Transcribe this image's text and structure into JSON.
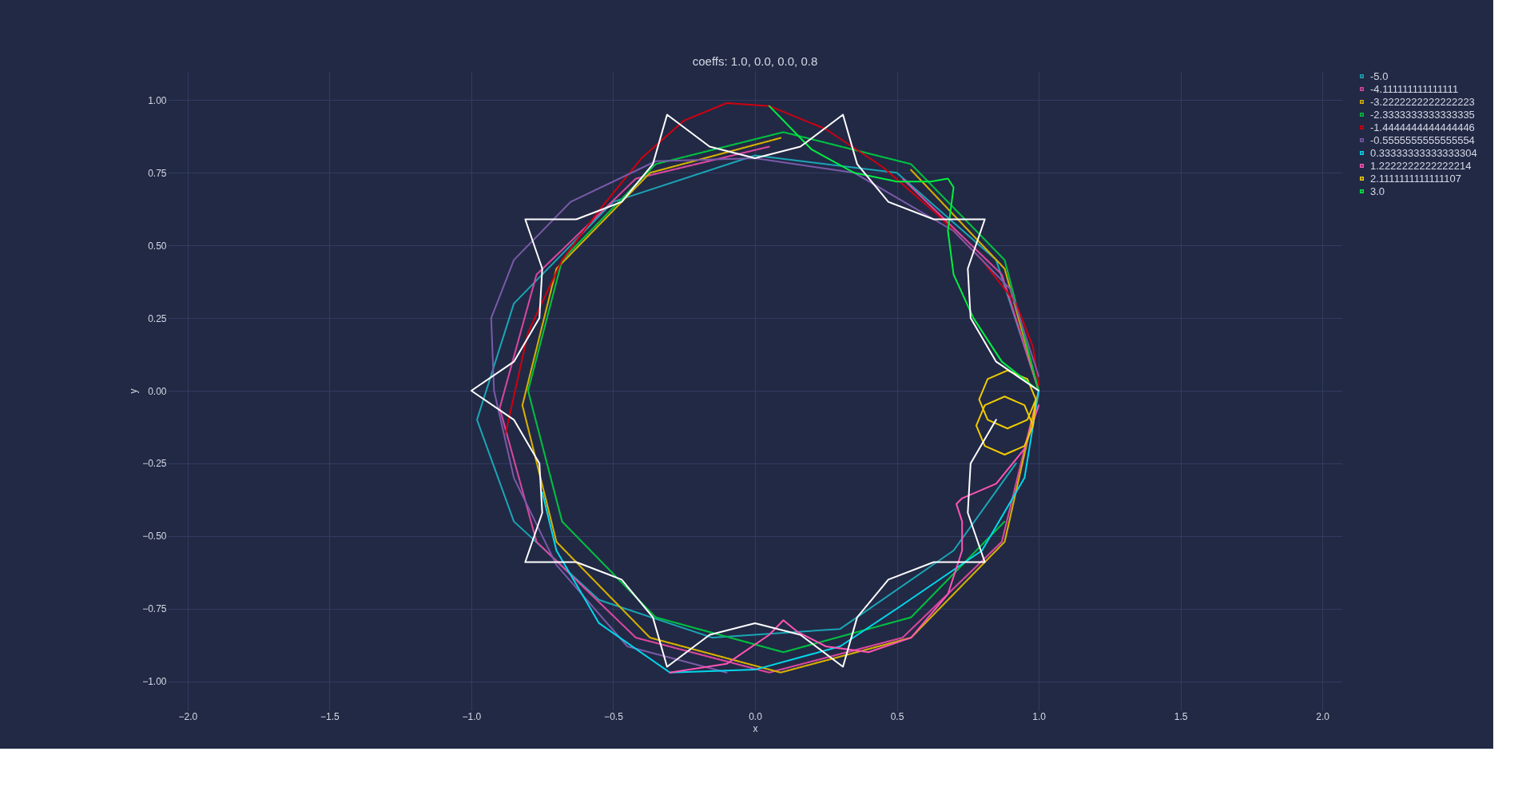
{
  "chart_data": {
    "type": "line",
    "title": "coeffs: 1.0, 0.0, 0.0, 0.8",
    "xlabel": "x",
    "ylabel": "y",
    "xlim": [
      -2.07,
      2.07
    ],
    "ylim": [
      -1.1,
      1.1
    ],
    "xticks": [
      {
        "value": -2,
        "label": "−2.0"
      },
      {
        "value": -1.5,
        "label": "−1.5"
      },
      {
        "value": -1,
        "label": "−1.0"
      },
      {
        "value": -0.5,
        "label": "−0.5"
      },
      {
        "value": 0,
        "label": "0.0"
      },
      {
        "value": 0.5,
        "label": "0.5"
      },
      {
        "value": 1,
        "label": "1.0"
      },
      {
        "value": 1.5,
        "label": "1.5"
      },
      {
        "value": 2,
        "label": "2.0"
      }
    ],
    "yticks": [
      {
        "value": -1,
        "label": "−1.00"
      },
      {
        "value": -0.75,
        "label": "−0.75"
      },
      {
        "value": -0.5,
        "label": "−0.50"
      },
      {
        "value": -0.25,
        "label": "−0.25"
      },
      {
        "value": 0,
        "label": "0.00"
      },
      {
        "value": 0.25,
        "label": "0.25"
      },
      {
        "value": 0.5,
        "label": "0.50"
      },
      {
        "value": 0.75,
        "label": "0.75"
      },
      {
        "value": 1,
        "label": "1.00"
      }
    ],
    "grid": true,
    "legend": "top right",
    "series": [
      {
        "name": "-5.0",
        "color": "#1aa6b5",
        "x": [
          1.0,
          0.85,
          0.5,
          0,
          -0.5,
          -0.85,
          -0.98,
          -0.85,
          -0.55,
          -0.15,
          0.3,
          0.7,
          0.92
        ],
        "values": [
          0,
          0.45,
          0.75,
          0.81,
          0.65,
          0.3,
          -0.1,
          -0.45,
          -0.72,
          -0.85,
          -0.82,
          -0.55,
          -0.25
        ]
      },
      {
        "name": "-4.111111111111111",
        "color": "#d8479e",
        "line_style": "dotted",
        "x": [
          0.05,
          -0.42,
          -0.77,
          -0.9,
          -0.77,
          -0.42,
          0.05,
          0.52,
          0.87,
          1.0,
          0.87,
          0.52
        ],
        "values": [
          0.84,
          0.73,
          0.4,
          -0.06,
          -0.52,
          -0.85,
          -0.97,
          -0.85,
          -0.52,
          0,
          0.4,
          0.73
        ]
      },
      {
        "name": "-3.2222222222222223",
        "color": "#d4b000",
        "line_style": "dotted",
        "x": [
          0.09,
          -0.37,
          -0.7,
          -0.82,
          -0.7,
          -0.37,
          0.09,
          0.55,
          0.88,
          1.0,
          0.88,
          0.55
        ],
        "values": [
          0.87,
          0.75,
          0.42,
          -0.05,
          -0.52,
          -0.85,
          -0.97,
          -0.85,
          -0.52,
          0,
          0.42,
          0.76
        ]
      },
      {
        "name": "-2.3333333333333335",
        "color": "#00c040",
        "line_style": "dotted",
        "x": [
          1.0,
          0.88,
          0.55,
          0.1,
          -0.35,
          -0.68,
          -0.8,
          -0.68,
          -0.35,
          0.1,
          0.55,
          0.88
        ],
        "values": [
          0,
          0.45,
          0.78,
          0.89,
          0.78,
          0.45,
          0,
          -0.45,
          -0.78,
          -0.9,
          -0.78,
          -0.45
        ]
      },
      {
        "name": "-1.4444444444444446",
        "color": "#d0000f",
        "x": [
          -0.88,
          -0.8,
          -0.68,
          -0.55,
          -0.4,
          -0.25,
          -0.1,
          0.05,
          0.25,
          0.45,
          0.65,
          0.8,
          0.92,
          0.98,
          1.0
        ],
        "values": [
          -0.15,
          0.2,
          0.45,
          0.62,
          0.8,
          0.93,
          0.99,
          0.98,
          0.9,
          0.77,
          0.6,
          0.45,
          0.3,
          0.15,
          0.02
        ]
      },
      {
        "name": "-0.5555555555555554",
        "color": "#7a5aa8",
        "x": [
          1.0,
          0.9,
          0.7,
          0.35,
          0,
          -0.35,
          -0.65,
          -0.85,
          -0.93,
          -0.92,
          -0.85,
          -0.7,
          -0.45,
          -0.1
        ],
        "values": [
          0.05,
          0.35,
          0.55,
          0.75,
          0.8,
          0.79,
          0.65,
          0.45,
          0.25,
          0,
          -0.3,
          -0.6,
          -0.88,
          -0.97
        ]
      },
      {
        "name": "0.33333333333333304",
        "color": "#00d8ec",
        "x": [
          1.0,
          0.95,
          0.8,
          0.5,
          0.3,
          0,
          -0.3,
          -0.55,
          -0.7,
          -0.75
        ],
        "values": [
          0,
          -0.3,
          -0.55,
          -0.75,
          -0.88,
          -0.96,
          -0.97,
          -0.8,
          -0.55,
          -0.35
        ]
      },
      {
        "name": "1.2222222222222214",
        "color": "#ff55b4",
        "x": [
          1.0,
          0.95,
          0.85,
          0.73,
          0.71,
          0.73,
          0.73,
          0.68,
          0.55,
          0.4,
          0.25,
          0.15,
          0.1,
          0.05,
          -0.1,
          -0.3
        ],
        "values": [
          -0.05,
          -0.2,
          -0.32,
          -0.37,
          -0.39,
          -0.45,
          -0.55,
          -0.7,
          -0.85,
          -0.9,
          -0.88,
          -0.83,
          -0.79,
          -0.84,
          -0.94,
          -0.97
        ]
      },
      {
        "name": "2.1111111111111107",
        "color": "#f0cc00",
        "x": [
          0.99,
          0.96,
          0.89,
          0.82,
          0.79,
          0.82,
          0.89,
          0.96,
          0.99,
          0.98,
          0.95,
          0.88,
          0.81,
          0.78,
          0.81,
          0.88,
          0.95,
          0.98
        ],
        "values": [
          -0.03,
          0.04,
          0.07,
          0.04,
          -0.03,
          -0.1,
          -0.13,
          -0.1,
          -0.03,
          -0.12,
          -0.19,
          -0.22,
          -0.19,
          -0.12,
          -0.05,
          -0.02,
          -0.05,
          -0.12
        ]
      },
      {
        "name": "3.0",
        "color": "#00f040",
        "x": [
          0.05,
          0.2,
          0.35,
          0.5,
          0.62,
          0.68,
          0.7,
          0.68,
          0.7,
          0.77,
          0.87,
          1.0
        ],
        "values": [
          0.98,
          0.83,
          0.75,
          0.72,
          0.72,
          0.73,
          0.7,
          0.55,
          0.4,
          0.25,
          0.1,
          0
        ]
      },
      {
        "color": "#ffffff",
        "x": [
          1,
          0.85,
          0.76,
          0.75,
          0.81,
          0.63,
          0.47,
          0.36,
          0.31,
          0.16,
          0,
          -0.16,
          -0.31,
          -0.36,
          -0.47,
          -0.63,
          -0.81,
          -0.75,
          -0.76,
          -0.85,
          -1,
          -0.85,
          -0.76,
          -0.75,
          -0.81,
          -0.63,
          -0.47,
          -0.36,
          -0.31,
          -0.16,
          0,
          0.16,
          0.31,
          0.36,
          0.47,
          0.63,
          0.81,
          0.75,
          0.76,
          0.85
        ],
        "values": [
          0,
          0.1,
          0.25,
          0.42,
          0.59,
          0.59,
          0.65,
          0.78,
          0.95,
          0.84,
          0.8,
          0.84,
          0.95,
          0.78,
          0.65,
          0.59,
          0.59,
          0.42,
          0.25,
          0.1,
          0,
          -0.1,
          -0.25,
          -0.42,
          -0.59,
          -0.59,
          -0.65,
          -0.78,
          -0.95,
          -0.84,
          -0.8,
          -0.84,
          -0.95,
          -0.78,
          -0.65,
          -0.59,
          -0.59,
          -0.42,
          -0.25,
          -0.1
        ]
      }
    ]
  }
}
